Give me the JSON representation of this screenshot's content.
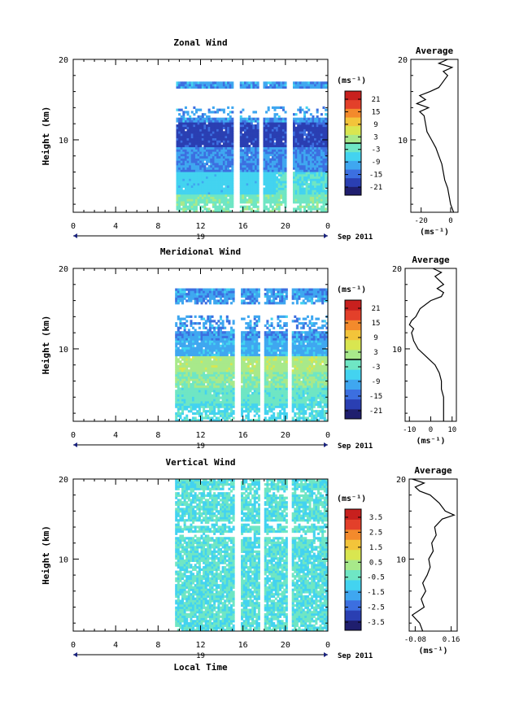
{
  "chart_data": [
    {
      "type": "heatmap",
      "title": "Zonal Wind",
      "ylabel": "Height (km)",
      "xlabel": "",
      "x_ticks": [
        "0",
        "4",
        "8",
        "12",
        "16",
        "20",
        "0"
      ],
      "x_range": [
        0,
        24
      ],
      "y_ticks": [
        "20",
        "10"
      ],
      "ylim": [
        1,
        20
      ],
      "date_label": "19",
      "date_suffix": "Sep 2011",
      "data_window_hours": [
        9.7,
        24
      ],
      "gap_hours": [
        [
          15.0,
          15.6
        ],
        [
          17.4,
          17.8
        ],
        [
          20.0,
          20.5
        ]
      ],
      "data_top_km": 17.2,
      "colorbar_unit": "(ms⁻¹)",
      "colorbar_ticks": [
        "21",
        "15",
        "9",
        "3",
        "-3",
        "-9",
        "-15",
        "-21"
      ],
      "colorbar_zero_line": true,
      "colormap": [
        "#1f1e6e",
        "#2a3fb2",
        "#3c6fe0",
        "#3fa7f0",
        "#43d3f0",
        "#6fe6c4",
        "#a8e98a",
        "#d9e650",
        "#f3c43a",
        "#f38a2c",
        "#e3402a",
        "#c8201e"
      ],
      "grid": false,
      "average_panel": {
        "title": "Average",
        "x_ticks": [
          "-20",
          "0"
        ],
        "xlim": [
          -27,
          5
        ],
        "xlabel": "(ms⁻¹)",
        "y_ticks": [
          "20",
          "10"
        ],
        "profile": [
          [
            1,
            2
          ],
          [
            2,
            0
          ],
          [
            3,
            -1
          ],
          [
            4,
            -2
          ],
          [
            5,
            -4
          ],
          [
            6,
            -5
          ],
          [
            7,
            -6
          ],
          [
            8,
            -8
          ],
          [
            9,
            -10
          ],
          [
            10,
            -13
          ],
          [
            11,
            -16
          ],
          [
            12,
            -17
          ],
          [
            13,
            -18
          ],
          [
            13.5,
            -21
          ],
          [
            14,
            -15
          ],
          [
            14.5,
            -23
          ],
          [
            15,
            -17
          ],
          [
            15.5,
            -21
          ],
          [
            16,
            -14
          ],
          [
            16.5,
            -8
          ],
          [
            17,
            -6
          ],
          [
            17.5,
            -4
          ],
          [
            18,
            -2
          ],
          [
            18.5,
            -5
          ],
          [
            19,
            1
          ],
          [
            19.5,
            -8
          ],
          [
            20,
            -2
          ]
        ]
      }
    },
    {
      "type": "heatmap",
      "title": "Meridional Wind",
      "ylabel": "Height (km)",
      "xlabel": "",
      "x_ticks": [
        "0",
        "4",
        "8",
        "12",
        "16",
        "20",
        "0"
      ],
      "x_range": [
        0,
        24
      ],
      "y_ticks": [
        "20",
        "10"
      ],
      "ylim": [
        1,
        20
      ],
      "date_label": "19",
      "date_suffix": "Sep 2011",
      "data_window_hours": [
        9.6,
        24
      ],
      "gap_hours": [
        [
          15.0,
          15.6
        ],
        [
          17.4,
          17.8
        ],
        [
          20.0,
          20.5
        ]
      ],
      "data_top_km": 17.5,
      "colorbar_unit": "(ms⁻¹)",
      "colorbar_ticks": [
        "21",
        "15",
        "9",
        "3",
        "-3",
        "-9",
        "-15",
        "-21"
      ],
      "colorbar_zero_line": true,
      "colormap": [
        "#1f1e6e",
        "#2a3fb2",
        "#3c6fe0",
        "#3fa7f0",
        "#43d3f0",
        "#6fe6c4",
        "#a8e98a",
        "#d9e650",
        "#f3c43a",
        "#f38a2c",
        "#e3402a",
        "#c8201e"
      ],
      "grid": false,
      "average_panel": {
        "title": "Average",
        "x_ticks": [
          "-10",
          "0",
          "10"
        ],
        "xlim": [
          -12,
          12
        ],
        "xlabel": "(ms⁻¹)",
        "y_ticks": [
          "20",
          "10"
        ],
        "profile": [
          [
            1,
            6
          ],
          [
            2,
            6
          ],
          [
            3,
            6
          ],
          [
            4,
            6
          ],
          [
            5,
            5
          ],
          [
            6,
            5
          ],
          [
            7,
            4
          ],
          [
            8,
            2
          ],
          [
            9,
            -2
          ],
          [
            10,
            -6
          ],
          [
            11,
            -8
          ],
          [
            12,
            -9
          ],
          [
            12.5,
            -8
          ],
          [
            13,
            -10
          ],
          [
            13.5,
            -9
          ],
          [
            14,
            -7
          ],
          [
            15,
            -5
          ],
          [
            16,
            0
          ],
          [
            16.5,
            5
          ],
          [
            17,
            6
          ],
          [
            17.5,
            3
          ],
          [
            18,
            6
          ],
          [
            18.5,
            4
          ],
          [
            19,
            2
          ],
          [
            19.5,
            5
          ],
          [
            20,
            1
          ]
        ]
      }
    },
    {
      "type": "heatmap",
      "title": "Vertical Wind",
      "ylabel": "Height (km)",
      "xlabel": "Local Time",
      "x_ticks": [
        "0",
        "4",
        "8",
        "12",
        "16",
        "20",
        "0"
      ],
      "x_range": [
        0,
        24
      ],
      "y_ticks": [
        "20",
        "10"
      ],
      "ylim": [
        1,
        20
      ],
      "date_label": "19",
      "date_suffix": "Sep 2011",
      "data_window_hours": [
        9.6,
        24
      ],
      "gap_hours": [
        [
          15.0,
          15.6
        ],
        [
          17.4,
          17.8
        ],
        [
          20.0,
          20.5
        ]
      ],
      "data_top_km": 20,
      "colorbar_unit": "(ms⁻¹)",
      "colorbar_ticks": [
        "3.5",
        "2.5",
        "1.5",
        "0.5",
        "-0.5",
        "-1.5",
        "-2.5",
        "-3.5"
      ],
      "colorbar_zero_line": false,
      "colormap": [
        "#1f1e6e",
        "#2a3fb2",
        "#3c6fe0",
        "#3fa7f0",
        "#43d3f0",
        "#6fe6c4",
        "#a8e98a",
        "#d9e650",
        "#f3c43a",
        "#f38a2c",
        "#e3402a",
        "#c8201e"
      ],
      "grid": false,
      "average_panel": {
        "title": "Average",
        "x_ticks": [
          "-0.08",
          "0.16"
        ],
        "xlim": [
          -0.12,
          0.2
        ],
        "xlabel": "(ms⁻¹)",
        "y_ticks": [
          "20",
          "10"
        ],
        "profile": [
          [
            1,
            -0.03
          ],
          [
            2,
            -0.05
          ],
          [
            3,
            -0.1
          ],
          [
            4,
            -0.02
          ],
          [
            5,
            -0.04
          ],
          [
            6,
            -0.01
          ],
          [
            7,
            -0.03
          ],
          [
            8,
            0.0
          ],
          [
            9,
            0.02
          ],
          [
            10,
            0.01
          ],
          [
            11,
            0.04
          ],
          [
            12,
            0.03
          ],
          [
            13,
            0.06
          ],
          [
            14,
            0.05
          ],
          [
            15,
            0.1
          ],
          [
            15.5,
            0.18
          ],
          [
            16,
            0.12
          ],
          [
            17,
            0.08
          ],
          [
            18,
            0.02
          ],
          [
            18.5,
            -0.05
          ],
          [
            19,
            -0.08
          ],
          [
            19.5,
            -0.02
          ],
          [
            20,
            -0.1
          ]
        ]
      }
    }
  ]
}
